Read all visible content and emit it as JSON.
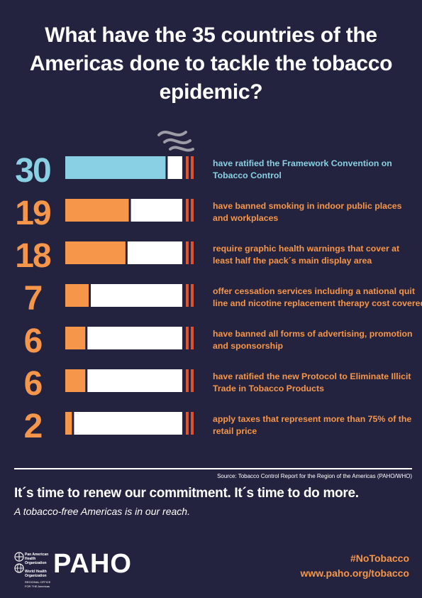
{
  "title": "What have the 35 countries of the Americas done to tackle the tobacco epidemic?",
  "chart_data": {
    "type": "bar",
    "total": 35,
    "rows": [
      {
        "value": 30,
        "label_line1": "have ratified the Framework Convention on",
        "label_line2": "Tobacco Control",
        "color": "#8ad0e4"
      },
      {
        "value": 19,
        "label_line1": "have banned smoking in indoor public places",
        "label_line2": "and workplaces",
        "color": "#f5964a"
      },
      {
        "value": 18,
        "label_line1": "require graphic health warnings that cover at",
        "label_line2": "least half the pack´s main display area",
        "color": "#f5964a"
      },
      {
        "value": 7,
        "label_line1": "offer cessation services including a national quit",
        "label_line2": "line and nicotine replacement therapy cost covered",
        "color": "#f5964a"
      },
      {
        "value": 6,
        "label_line1": "have banned all forms of advertising, promotion",
        "label_line2": "and sponsorship",
        "color": "#f5964a"
      },
      {
        "value": 6,
        "label_line1": "have ratified the new Protocol to Eliminate Illicit",
        "label_line2": "Trade in Tobacco Products",
        "color": "#f5964a"
      },
      {
        "value": 2,
        "label_line1": "apply taxes that represent more than 75% of the",
        "label_line2": "retail price",
        "color": "#f5964a"
      }
    ],
    "remainder_color": "#ffffff",
    "tip_color": "#e2502c",
    "smoke_color": "#9c9ca6"
  },
  "source": "Source: Tobacco Control Report for the Region  of the Americas (PAHO/WHO)",
  "commitment": "It´s time to renew our commitment. It´s time to do more.",
  "commitment2": "A tobacco-free Americas is in our reach.",
  "logo": {
    "paho_name": "Pan American Health Organization",
    "who_name": "World Health Organization",
    "regional_office": "REGIONAL OFFICE FOR THE Americas",
    "wordmark": "PAHO"
  },
  "hashtag": "#NoTobacco",
  "url": "www.paho.org/tobacco"
}
